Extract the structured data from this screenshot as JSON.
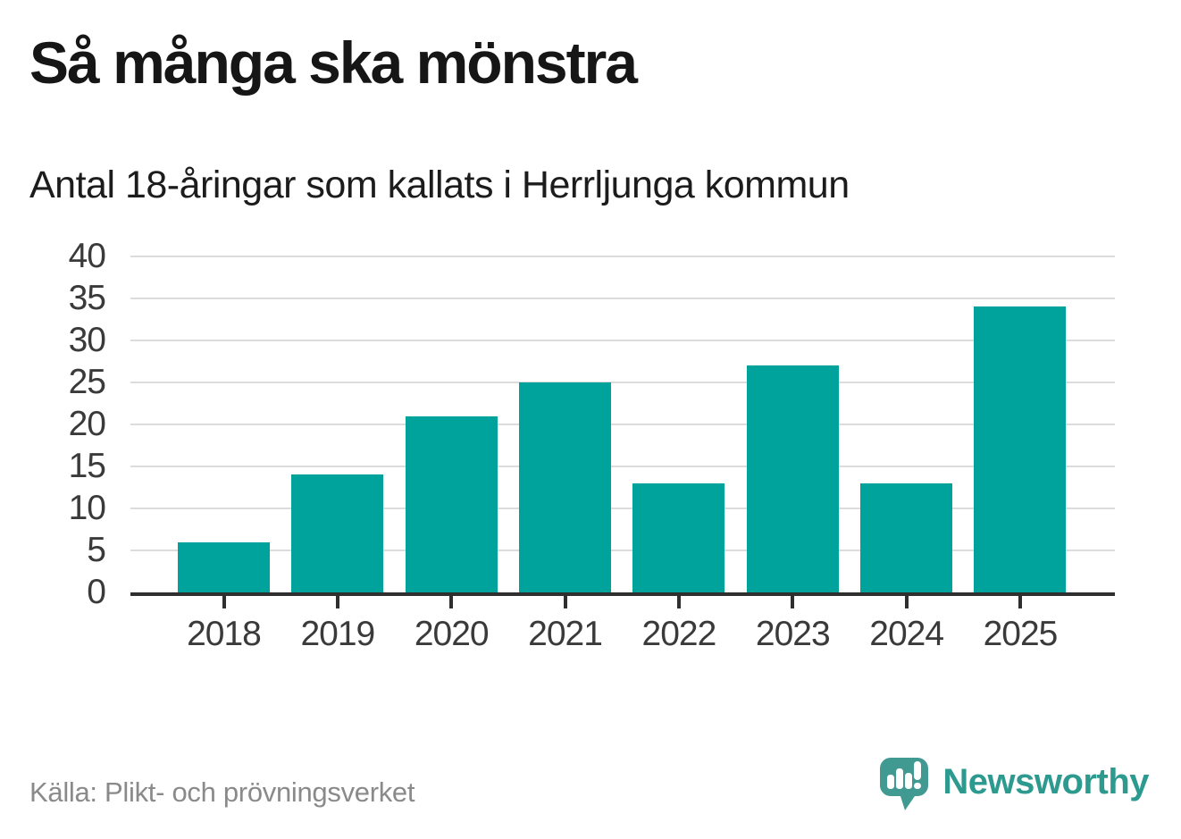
{
  "title": "Så många ska mönstra",
  "subtitle": "Antal 18-åringar som kallats i Herrljunga kommun",
  "source": "Källa: Plikt- och prövningsverket",
  "brand": {
    "name": "Newsworthy",
    "icon": "newsworthy-speech-bubble-bar-chart-icon"
  },
  "colors": {
    "bar": "#00a39b",
    "grid": "#dcdcdc",
    "axis": "#2f2f2f",
    "axis_label": "#3a3a3a",
    "title": "#161616",
    "subtitle": "#1c1c1c",
    "source": "#8a8a8a",
    "brand_icon": "#409a92",
    "brand_text": "#2d9a8f"
  },
  "chart_data": {
    "type": "bar",
    "title": "Så många ska mönstra",
    "subtitle": "Antal 18-åringar som kallats i Herrljunga kommun",
    "categories": [
      "2018",
      "2019",
      "2020",
      "2021",
      "2022",
      "2023",
      "2024",
      "2025"
    ],
    "values": [
      6,
      14,
      21,
      25,
      13,
      27,
      13,
      34
    ],
    "xlabel": "",
    "ylabel": "",
    "ylim": [
      0,
      40
    ],
    "yticks": [
      0,
      5,
      10,
      15,
      20,
      25,
      30,
      35,
      40
    ],
    "grid": true,
    "legend": false,
    "bar_color": "#00a39b",
    "source": "Källa: Plikt- och prövningsverket"
  }
}
